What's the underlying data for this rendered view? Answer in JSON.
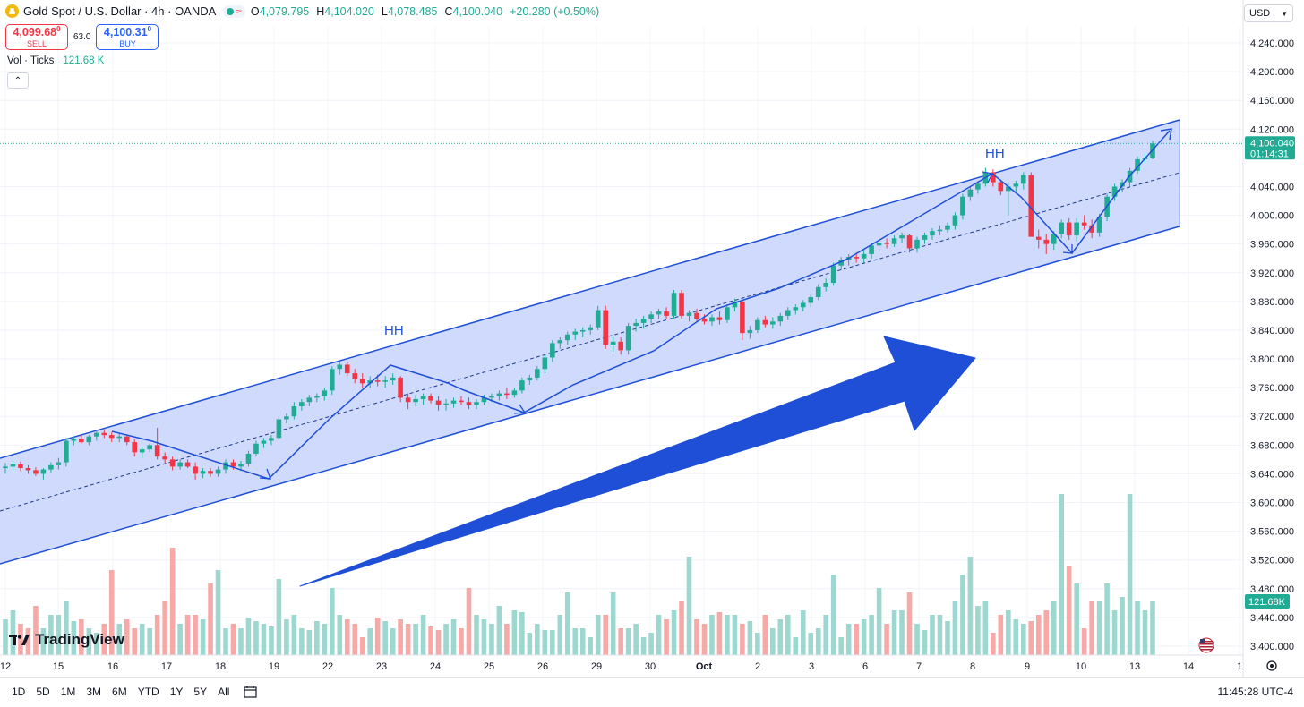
{
  "header": {
    "symbol": "Gold Spot / U.S. Dollar · 4h · OANDA",
    "icon": "gold-coin-icon",
    "ohlc": {
      "open_label": "O",
      "open": "4,079.795",
      "high_label": "H",
      "high": "4,104.020",
      "low_label": "L",
      "low": "4,078.485",
      "close_label": "C",
      "close": "4,100.040",
      "change": "+20.280 (+0.50%)"
    }
  },
  "trade": {
    "sell_price": "4,099.68",
    "sell_sup": "0",
    "sell_label": "SELL",
    "spread": "63.0",
    "buy_price": "4,100.31",
    "buy_sup": "0",
    "buy_label": "BUY"
  },
  "volume_legend": {
    "label": "Vol · Ticks",
    "value": "121.68 K"
  },
  "currency": "USD",
  "price_axis": {
    "ticks": [
      "4,240.000",
      "4,200.000",
      "4,160.000",
      "4,120.000",
      "4,040.000",
      "4,000.000",
      "3,960.000",
      "3,920.000",
      "3,880.000",
      "3,840.000",
      "3,800.000",
      "3,760.000",
      "3,720.000",
      "3,680.000",
      "3,640.000",
      "3,600.000",
      "3,560.000",
      "3,520.000",
      "3,480.000",
      "3,440.000",
      "3,400.000"
    ],
    "last_price": "4,100.040",
    "countdown": "01:14:31",
    "volume_badge": "121.68K"
  },
  "time_axis": [
    "12",
    "15",
    "16",
    "17",
    "18",
    "19",
    "22",
    "23",
    "24",
    "25",
    "26",
    "29",
    "30",
    "Oct",
    "2",
    "3",
    "6",
    "7",
    "8",
    "9",
    "10",
    "13",
    "14",
    "1"
  ],
  "annotations": {
    "hh1": "HH",
    "hh2": "HH"
  },
  "watermark": "TradingView",
  "bottom_bar": {
    "ranges": [
      "1D",
      "5D",
      "1M",
      "3M",
      "6M",
      "YTD",
      "1Y",
      "5Y",
      "All"
    ],
    "clock": "11:45:28 UTC-4"
  },
  "colors": {
    "up": "#22ab94",
    "down": "#f23645",
    "channel": "#1e4fd6",
    "channel_fill": "#c8d4fb",
    "vol_up": "#9ed7cf",
    "vol_down": "#f7a9a7"
  },
  "chart_data": {
    "type": "candlestick",
    "x_labels": [
      "12",
      "15",
      "16",
      "17",
      "18",
      "19",
      "22",
      "23",
      "24",
      "25",
      "26",
      "29",
      "30",
      "Oct",
      "2",
      "3",
      "6",
      "7",
      "8",
      "9",
      "10",
      "13",
      "14",
      "1"
    ],
    "ylim": [
      3400,
      4240
    ],
    "series": [
      {
        "values": [
          {
            "o": 3648,
            "h": 3655,
            "l": 3640,
            "c": 3650
          },
          {
            "o": 3650,
            "h": 3658,
            "l": 3645,
            "c": 3653
          },
          {
            "o": 3653,
            "h": 3657,
            "l": 3644,
            "c": 3648
          },
          {
            "o": 3648,
            "h": 3652,
            "l": 3640,
            "c": 3645
          },
          {
            "o": 3645,
            "h": 3649,
            "l": 3637,
            "c": 3640
          },
          {
            "o": 3640,
            "h": 3648,
            "l": 3632,
            "c": 3646
          },
          {
            "o": 3646,
            "h": 3656,
            "l": 3642,
            "c": 3652
          },
          {
            "o": 3652,
            "h": 3662,
            "l": 3646,
            "c": 3656
          },
          {
            "o": 3656,
            "h": 3690,
            "l": 3650,
            "c": 3686
          },
          {
            "o": 3686,
            "h": 3692,
            "l": 3680,
            "c": 3688
          },
          {
            "o": 3688,
            "h": 3694,
            "l": 3682,
            "c": 3684
          },
          {
            "o": 3684,
            "h": 3694,
            "l": 3680,
            "c": 3692
          },
          {
            "o": 3692,
            "h": 3700,
            "l": 3686,
            "c": 3697
          },
          {
            "o": 3697,
            "h": 3702,
            "l": 3690,
            "c": 3694
          },
          {
            "o": 3694,
            "h": 3698,
            "l": 3684,
            "c": 3690
          },
          {
            "o": 3690,
            "h": 3696,
            "l": 3684,
            "c": 3692
          },
          {
            "o": 3692,
            "h": 3695,
            "l": 3680,
            "c": 3684
          },
          {
            "o": 3684,
            "h": 3688,
            "l": 3664,
            "c": 3670
          },
          {
            "o": 3670,
            "h": 3678,
            "l": 3662,
            "c": 3674
          },
          {
            "o": 3674,
            "h": 3682,
            "l": 3670,
            "c": 3680
          },
          {
            "o": 3680,
            "h": 3704,
            "l": 3660,
            "c": 3664
          },
          {
            "o": 3664,
            "h": 3670,
            "l": 3655,
            "c": 3660
          },
          {
            "o": 3660,
            "h": 3664,
            "l": 3645,
            "c": 3650
          },
          {
            "o": 3650,
            "h": 3660,
            "l": 3646,
            "c": 3656
          },
          {
            "o": 3656,
            "h": 3660,
            "l": 3648,
            "c": 3650
          },
          {
            "o": 3650,
            "h": 3656,
            "l": 3632,
            "c": 3640
          },
          {
            "o": 3640,
            "h": 3648,
            "l": 3634,
            "c": 3644
          },
          {
            "o": 3644,
            "h": 3648,
            "l": 3636,
            "c": 3640
          },
          {
            "o": 3640,
            "h": 3650,
            "l": 3636,
            "c": 3646
          },
          {
            "o": 3646,
            "h": 3660,
            "l": 3640,
            "c": 3656
          },
          {
            "o": 3656,
            "h": 3660,
            "l": 3646,
            "c": 3650
          },
          {
            "o": 3650,
            "h": 3658,
            "l": 3644,
            "c": 3654
          },
          {
            "o": 3654,
            "h": 3672,
            "l": 3650,
            "c": 3668
          },
          {
            "o": 3668,
            "h": 3686,
            "l": 3664,
            "c": 3682
          },
          {
            "o": 3682,
            "h": 3690,
            "l": 3676,
            "c": 3686
          },
          {
            "o": 3686,
            "h": 3694,
            "l": 3680,
            "c": 3690
          },
          {
            "o": 3690,
            "h": 3720,
            "l": 3686,
            "c": 3716
          },
          {
            "o": 3716,
            "h": 3724,
            "l": 3710,
            "c": 3720
          },
          {
            "o": 3720,
            "h": 3740,
            "l": 3716,
            "c": 3734
          },
          {
            "o": 3734,
            "h": 3744,
            "l": 3728,
            "c": 3740
          },
          {
            "o": 3740,
            "h": 3750,
            "l": 3734,
            "c": 3746
          },
          {
            "o": 3746,
            "h": 3752,
            "l": 3740,
            "c": 3748
          },
          {
            "o": 3748,
            "h": 3760,
            "l": 3742,
            "c": 3756
          },
          {
            "o": 3756,
            "h": 3790,
            "l": 3750,
            "c": 3786
          },
          {
            "o": 3786,
            "h": 3796,
            "l": 3778,
            "c": 3792
          },
          {
            "o": 3792,
            "h": 3796,
            "l": 3776,
            "c": 3780
          },
          {
            "o": 3780,
            "h": 3786,
            "l": 3766,
            "c": 3772
          },
          {
            "o": 3772,
            "h": 3780,
            "l": 3760,
            "c": 3766
          },
          {
            "o": 3766,
            "h": 3776,
            "l": 3760,
            "c": 3770
          },
          {
            "o": 3770,
            "h": 3778,
            "l": 3762,
            "c": 3768
          },
          {
            "o": 3768,
            "h": 3776,
            "l": 3760,
            "c": 3770
          },
          {
            "o": 3770,
            "h": 3780,
            "l": 3764,
            "c": 3774
          },
          {
            "o": 3774,
            "h": 3776,
            "l": 3740,
            "c": 3746
          },
          {
            "o": 3746,
            "h": 3752,
            "l": 3730,
            "c": 3740
          },
          {
            "o": 3740,
            "h": 3750,
            "l": 3734,
            "c": 3744
          },
          {
            "o": 3744,
            "h": 3752,
            "l": 3736,
            "c": 3748
          },
          {
            "o": 3748,
            "h": 3752,
            "l": 3738,
            "c": 3742
          },
          {
            "o": 3742,
            "h": 3748,
            "l": 3728,
            "c": 3736
          },
          {
            "o": 3736,
            "h": 3744,
            "l": 3728,
            "c": 3738
          },
          {
            "o": 3738,
            "h": 3746,
            "l": 3732,
            "c": 3742
          },
          {
            "o": 3742,
            "h": 3748,
            "l": 3736,
            "c": 3740
          },
          {
            "o": 3740,
            "h": 3746,
            "l": 3730,
            "c": 3736
          },
          {
            "o": 3736,
            "h": 3744,
            "l": 3730,
            "c": 3740
          },
          {
            "o": 3740,
            "h": 3750,
            "l": 3736,
            "c": 3746
          },
          {
            "o": 3746,
            "h": 3752,
            "l": 3740,
            "c": 3748
          },
          {
            "o": 3748,
            "h": 3756,
            "l": 3742,
            "c": 3752
          },
          {
            "o": 3752,
            "h": 3760,
            "l": 3744,
            "c": 3750
          },
          {
            "o": 3750,
            "h": 3760,
            "l": 3746,
            "c": 3756
          },
          {
            "o": 3756,
            "h": 3774,
            "l": 3752,
            "c": 3770
          },
          {
            "o": 3770,
            "h": 3778,
            "l": 3764,
            "c": 3774
          },
          {
            "o": 3774,
            "h": 3790,
            "l": 3770,
            "c": 3786
          },
          {
            "o": 3786,
            "h": 3806,
            "l": 3780,
            "c": 3802
          },
          {
            "o": 3802,
            "h": 3826,
            "l": 3796,
            "c": 3822
          },
          {
            "o": 3822,
            "h": 3830,
            "l": 3814,
            "c": 3826
          },
          {
            "o": 3826,
            "h": 3838,
            "l": 3820,
            "c": 3834
          },
          {
            "o": 3834,
            "h": 3842,
            "l": 3826,
            "c": 3838
          },
          {
            "o": 3838,
            "h": 3844,
            "l": 3830,
            "c": 3840
          },
          {
            "o": 3840,
            "h": 3848,
            "l": 3834,
            "c": 3844
          },
          {
            "o": 3844,
            "h": 3874,
            "l": 3840,
            "c": 3868
          },
          {
            "o": 3868,
            "h": 3874,
            "l": 3814,
            "c": 3820
          },
          {
            "o": 3820,
            "h": 3830,
            "l": 3810,
            "c": 3824
          },
          {
            "o": 3824,
            "h": 3830,
            "l": 3806,
            "c": 3812
          },
          {
            "o": 3812,
            "h": 3850,
            "l": 3806,
            "c": 3846
          },
          {
            "o": 3846,
            "h": 3856,
            "l": 3838,
            "c": 3850
          },
          {
            "o": 3850,
            "h": 3860,
            "l": 3842,
            "c": 3856
          },
          {
            "o": 3856,
            "h": 3866,
            "l": 3850,
            "c": 3862
          },
          {
            "o": 3862,
            "h": 3870,
            "l": 3856,
            "c": 3866
          },
          {
            "o": 3866,
            "h": 3872,
            "l": 3856,
            "c": 3860
          },
          {
            "o": 3860,
            "h": 3896,
            "l": 3856,
            "c": 3892
          },
          {
            "o": 3892,
            "h": 3896,
            "l": 3856,
            "c": 3860
          },
          {
            "o": 3860,
            "h": 3868,
            "l": 3852,
            "c": 3864
          },
          {
            "o": 3864,
            "h": 3870,
            "l": 3852,
            "c": 3856
          },
          {
            "o": 3856,
            "h": 3862,
            "l": 3848,
            "c": 3852
          },
          {
            "o": 3852,
            "h": 3862,
            "l": 3846,
            "c": 3858
          },
          {
            "o": 3858,
            "h": 3866,
            "l": 3848,
            "c": 3854
          },
          {
            "o": 3854,
            "h": 3876,
            "l": 3850,
            "c": 3872
          },
          {
            "o": 3872,
            "h": 3884,
            "l": 3866,
            "c": 3880
          },
          {
            "o": 3880,
            "h": 3882,
            "l": 3826,
            "c": 3836
          },
          {
            "o": 3836,
            "h": 3846,
            "l": 3828,
            "c": 3840
          },
          {
            "o": 3840,
            "h": 3858,
            "l": 3836,
            "c": 3854
          },
          {
            "o": 3854,
            "h": 3860,
            "l": 3844,
            "c": 3848
          },
          {
            "o": 3848,
            "h": 3858,
            "l": 3842,
            "c": 3852
          },
          {
            "o": 3852,
            "h": 3864,
            "l": 3846,
            "c": 3860
          },
          {
            "o": 3860,
            "h": 3872,
            "l": 3854,
            "c": 3868
          },
          {
            "o": 3868,
            "h": 3876,
            "l": 3862,
            "c": 3872
          },
          {
            "o": 3872,
            "h": 3882,
            "l": 3866,
            "c": 3878
          },
          {
            "o": 3878,
            "h": 3890,
            "l": 3872,
            "c": 3886
          },
          {
            "o": 3886,
            "h": 3904,
            "l": 3882,
            "c": 3900
          },
          {
            "o": 3900,
            "h": 3912,
            "l": 3894,
            "c": 3906
          },
          {
            "o": 3906,
            "h": 3934,
            "l": 3902,
            "c": 3930
          },
          {
            "o": 3930,
            "h": 3942,
            "l": 3924,
            "c": 3938
          },
          {
            "o": 3938,
            "h": 3946,
            "l": 3930,
            "c": 3942
          },
          {
            "o": 3942,
            "h": 3948,
            "l": 3934,
            "c": 3940
          },
          {
            "o": 3940,
            "h": 3952,
            "l": 3934,
            "c": 3946
          },
          {
            "o": 3946,
            "h": 3962,
            "l": 3940,
            "c": 3958
          },
          {
            "o": 3958,
            "h": 3968,
            "l": 3950,
            "c": 3962
          },
          {
            "o": 3962,
            "h": 3968,
            "l": 3954,
            "c": 3960
          },
          {
            "o": 3960,
            "h": 3972,
            "l": 3956,
            "c": 3968
          },
          {
            "o": 3968,
            "h": 3976,
            "l": 3962,
            "c": 3972
          },
          {
            "o": 3972,
            "h": 3974,
            "l": 3948,
            "c": 3954
          },
          {
            "o": 3954,
            "h": 3970,
            "l": 3948,
            "c": 3966
          },
          {
            "o": 3966,
            "h": 3976,
            "l": 3960,
            "c": 3972
          },
          {
            "o": 3972,
            "h": 3982,
            "l": 3966,
            "c": 3978
          },
          {
            "o": 3978,
            "h": 3986,
            "l": 3972,
            "c": 3980
          },
          {
            "o": 3980,
            "h": 3990,
            "l": 3976,
            "c": 3986
          },
          {
            "o": 3986,
            "h": 4004,
            "l": 3980,
            "c": 4000
          },
          {
            "o": 4000,
            "h": 4030,
            "l": 3994,
            "c": 4026
          },
          {
            "o": 4026,
            "h": 4040,
            "l": 4020,
            "c": 4036
          },
          {
            "o": 4036,
            "h": 4048,
            "l": 4030,
            "c": 4044
          },
          {
            "o": 4044,
            "h": 4066,
            "l": 4040,
            "c": 4060
          },
          {
            "o": 4060,
            "h": 4064,
            "l": 4040,
            "c": 4046
          },
          {
            "o": 4046,
            "h": 4050,
            "l": 4028,
            "c": 4034
          },
          {
            "o": 4034,
            "h": 4046,
            "l": 4000,
            "c": 4040
          },
          {
            "o": 4040,
            "h": 4048,
            "l": 4030,
            "c": 4044
          },
          {
            "o": 4044,
            "h": 4060,
            "l": 4036,
            "c": 4056
          },
          {
            "o": 4056,
            "h": 4060,
            "l": 3984,
            "c": 3970
          },
          {
            "o": 3970,
            "h": 3980,
            "l": 3954,
            "c": 3966
          },
          {
            "o": 3966,
            "h": 3974,
            "l": 3946,
            "c": 3960
          },
          {
            "o": 3960,
            "h": 3978,
            "l": 3952,
            "c": 3974
          },
          {
            "o": 3974,
            "h": 3994,
            "l": 3968,
            "c": 3990
          },
          {
            "o": 3990,
            "h": 3996,
            "l": 3966,
            "c": 3972
          },
          {
            "o": 3972,
            "h": 3996,
            "l": 3964,
            "c": 3990
          },
          {
            "o": 3990,
            "h": 4000,
            "l": 3980,
            "c": 3986
          },
          {
            "o": 3986,
            "h": 3994,
            "l": 3968,
            "c": 3976
          },
          {
            "o": 3976,
            "h": 4002,
            "l": 3970,
            "c": 3998
          },
          {
            "o": 3998,
            "h": 4030,
            "l": 3992,
            "c": 4026
          },
          {
            "o": 4026,
            "h": 4044,
            "l": 4020,
            "c": 4040
          },
          {
            "o": 4040,
            "h": 4050,
            "l": 4032,
            "c": 4046
          },
          {
            "o": 4046,
            "h": 4066,
            "l": 4040,
            "c": 4062
          },
          {
            "o": 4062,
            "h": 4082,
            "l": 4058,
            "c": 4078
          },
          {
            "o": 4078,
            "h": 4086,
            "l": 4072,
            "c": 4080
          },
          {
            "o": 4080,
            "h": 4104,
            "l": 4078,
            "c": 4100
          }
        ]
      }
    ]
  }
}
